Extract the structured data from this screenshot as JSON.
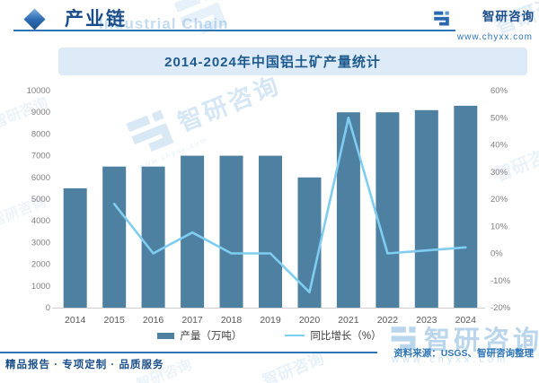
{
  "header": {
    "section_label": "产业链",
    "watermark": "Industrial Chain",
    "brand_name": "智研咨询",
    "brand_url": "www.chyxx.com"
  },
  "chart_data": {
    "type": "bar+line",
    "title": "2014-2024年中国铝土矿产量统计",
    "categories": [
      "2014",
      "2015",
      "2016",
      "2017",
      "2018",
      "2019",
      "2020",
      "2021",
      "2022",
      "2023",
      "2024"
    ],
    "series": [
      {
        "name": "产量（万吨）",
        "type": "bar",
        "axis": "left",
        "color": "#4e80a1",
        "values": [
          5500,
          6500,
          6500,
          7000,
          7000,
          7000,
          6000,
          9000,
          9000,
          9100,
          9300
        ]
      },
      {
        "name": "同比增长（%）",
        "type": "line",
        "axis": "right",
        "color": "#7fcdf0",
        "values": [
          null,
          18.2,
          0,
          7.7,
          0,
          0,
          -14.3,
          50,
          0,
          1.1,
          2.2
        ]
      }
    ],
    "left_axis": {
      "min": 0,
      "max": 10000,
      "step": 1000
    },
    "right_axis": {
      "min": -20,
      "max": 60,
      "step": 10,
      "suffix": "%"
    },
    "grid": false,
    "legend_position": "bottom"
  },
  "footer": {
    "tagline": "精品报告 · 专项定制 · 品质服务",
    "source": "资料来源：USGS、智研咨询整理"
  },
  "colors": {
    "accent_blue": "#2e75b6",
    "dark_blue": "#1a4e8a",
    "title_box_bg": "#dcebf7",
    "bar": "#4e80a1",
    "line": "#7fcdf0",
    "watermark": "#b3d3ec"
  }
}
